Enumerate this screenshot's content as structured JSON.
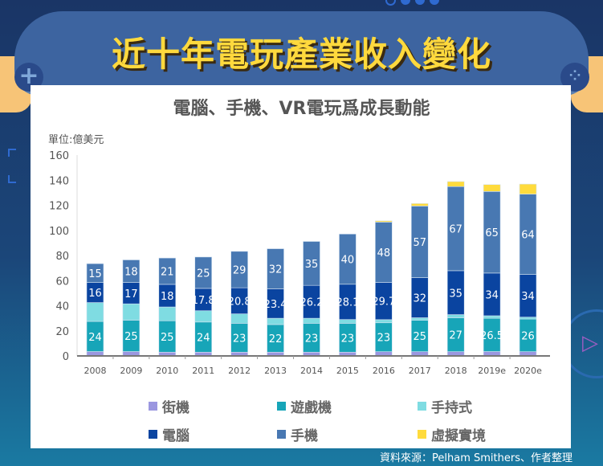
{
  "header": {
    "title": "近十年電玩產業收入變化",
    "subtitle": "電腦、手機、VR電玩爲成長動能"
  },
  "source": "資料來源：Pelham Smithers、作者整理",
  "chart_data": {
    "type": "bar",
    "stacked": true,
    "unit_label": "單位:億美元",
    "categories": [
      "2008",
      "2009",
      "2010",
      "2011",
      "2012",
      "2013",
      "2014",
      "2015",
      "2016",
      "2017",
      "2018",
      "2019e",
      "2020e"
    ],
    "ylim": [
      0,
      160
    ],
    "yticks": [
      0,
      20,
      40,
      60,
      80,
      100,
      120,
      140,
      160
    ],
    "grid": false,
    "legend_position": "bottom",
    "series": [
      {
        "name": "街機",
        "color": "#9b97e0",
        "labeled": false,
        "values": [
          3.5,
          3.5,
          3,
          3,
          3,
          3,
          3,
          3,
          3.4,
          3.4,
          3.4,
          3.5,
          3.4
        ]
      },
      {
        "name": "遊戲機",
        "color": "#17a5b8",
        "labeled": true,
        "values": [
          24,
          25,
          25,
          24,
          23,
          22,
          23,
          23,
          23,
          25,
          27,
          26.5,
          26
        ]
      },
      {
        "name": "手持式",
        "color": "#7fdce2",
        "labeled": false,
        "values": [
          15,
          13,
          11,
          9,
          7.5,
          5,
          4,
          3,
          2.5,
          2,
          2.5,
          2,
          1.5
        ]
      },
      {
        "name": "電腦",
        "color": "#0a44a0",
        "labeled": true,
        "values": [
          16,
          17,
          18,
          17.8,
          20.8,
          23.4,
          26.2,
          28.1,
          29.7,
          32,
          35,
          34,
          34
        ]
      },
      {
        "name": "手機",
        "color": "#4878b2",
        "labeled": true,
        "values": [
          15,
          18,
          21,
          25,
          29,
          32,
          35,
          40,
          48,
          57,
          67,
          65,
          64
        ]
      },
      {
        "name": "虛擬實境",
        "color": "#ffdb3c",
        "labeled": false,
        "values": [
          0,
          0,
          0,
          0,
          0,
          0,
          0,
          0,
          1,
          2,
          4,
          5.5,
          8
        ]
      }
    ]
  }
}
